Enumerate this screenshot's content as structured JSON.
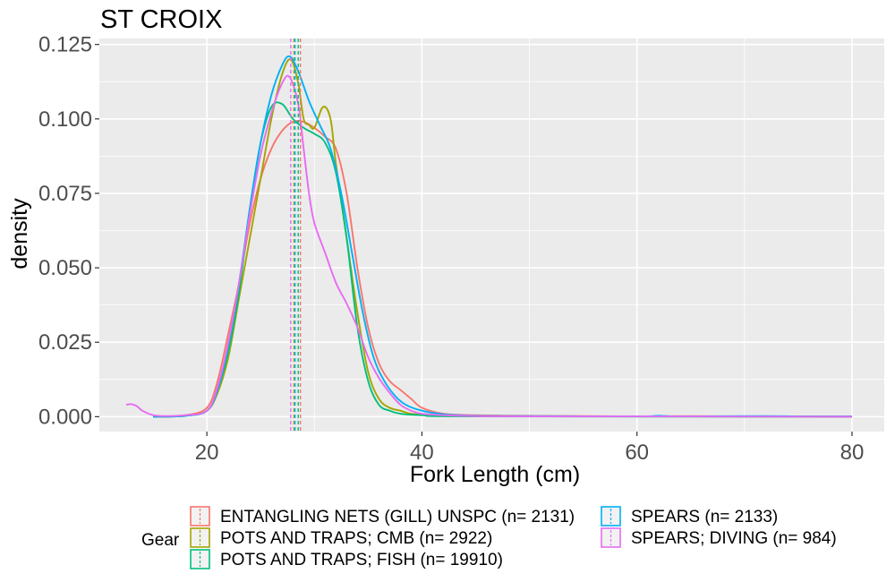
{
  "chart_data": {
    "type": "line",
    "title": "ST CROIX",
    "xlabel": "Fork Length (cm)",
    "ylabel": "density",
    "xlim": [
      10,
      83
    ],
    "ylim": [
      -0.005,
      0.127
    ],
    "x_ticks": [
      20,
      40,
      60,
      80
    ],
    "x_tick_labels": [
      "20",
      "40",
      "60",
      "80"
    ],
    "y_ticks": [
      0,
      0.025,
      0.05,
      0.075,
      0.1,
      0.125
    ],
    "y_tick_labels": [
      "0.000",
      "0.025",
      "0.050",
      "0.075",
      "0.100",
      "0.125"
    ],
    "grid": true,
    "legend_title": "Gear",
    "legend_position": "bottom",
    "series": [
      {
        "name": "ENTANGLING NETS (GILL) UNSPC (n= 2131)",
        "color": "#F8766D",
        "mean": 28.7,
        "points": [
          [
            15,
            0
          ],
          [
            18,
            0.0005
          ],
          [
            20,
            0.003
          ],
          [
            21,
            0.012
          ],
          [
            22,
            0.028
          ],
          [
            23,
            0.045
          ],
          [
            24,
            0.065
          ],
          [
            25,
            0.08
          ],
          [
            26,
            0.09
          ],
          [
            27,
            0.096
          ],
          [
            28,
            0.099
          ],
          [
            29,
            0.099
          ],
          [
            30,
            0.097
          ],
          [
            31,
            0.094
          ],
          [
            32,
            0.09
          ],
          [
            33,
            0.075
          ],
          [
            34,
            0.05
          ],
          [
            35,
            0.03
          ],
          [
            36,
            0.018
          ],
          [
            37,
            0.012
          ],
          [
            38,
            0.009
          ],
          [
            39,
            0.006
          ],
          [
            40,
            0.003
          ],
          [
            42,
            0.001
          ],
          [
            45,
            0.0005
          ],
          [
            50,
            0.0003
          ],
          [
            55,
            0.0002
          ],
          [
            60,
            0.0001
          ],
          [
            65,
            0.0002
          ],
          [
            70,
            0.0001
          ],
          [
            80,
            0.0001
          ]
        ]
      },
      {
        "name": "POTS AND TRAPS; CMB (n= 2922)",
        "color": "#A3A500",
        "mean": 28.1,
        "points": [
          [
            15,
            0
          ],
          [
            18,
            0.0003
          ],
          [
            20,
            0.002
          ],
          [
            21,
            0.008
          ],
          [
            22,
            0.02
          ],
          [
            23,
            0.04
          ],
          [
            24,
            0.06
          ],
          [
            25,
            0.08
          ],
          [
            26,
            0.1
          ],
          [
            27,
            0.115
          ],
          [
            27.8,
            0.12
          ],
          [
            28.5,
            0.112
          ],
          [
            29,
            0.1
          ],
          [
            29.5,
            0.098
          ],
          [
            30,
            0.097
          ],
          [
            30.8,
            0.104
          ],
          [
            31.5,
            0.1
          ],
          [
            32,
            0.085
          ],
          [
            33,
            0.06
          ],
          [
            34,
            0.035
          ],
          [
            35,
            0.015
          ],
          [
            36,
            0.006
          ],
          [
            37,
            0.003
          ],
          [
            38,
            0.002
          ],
          [
            39,
            0.001
          ],
          [
            41,
            0.0005
          ],
          [
            45,
            0.0002
          ],
          [
            50,
            0.0001
          ],
          [
            60,
            0.0001
          ],
          [
            80,
            0
          ]
        ]
      },
      {
        "name": "POTS AND TRAPS; FISH (n= 19910)",
        "color": "#00BF7D",
        "mean": 28.5,
        "points": [
          [
            15,
            0
          ],
          [
            18,
            0.0003
          ],
          [
            20,
            0.002
          ],
          [
            21,
            0.009
          ],
          [
            22,
            0.022
          ],
          [
            23,
            0.042
          ],
          [
            24,
            0.07
          ],
          [
            25,
            0.092
          ],
          [
            26,
            0.104
          ],
          [
            27,
            0.105
          ],
          [
            28,
            0.1
          ],
          [
            29,
            0.097
          ],
          [
            30,
            0.095
          ],
          [
            31,
            0.092
          ],
          [
            32,
            0.082
          ],
          [
            33,
            0.06
          ],
          [
            34,
            0.03
          ],
          [
            35,
            0.012
          ],
          [
            36,
            0.004
          ],
          [
            37,
            0.002
          ],
          [
            38,
            0.001
          ],
          [
            40,
            0.0005
          ],
          [
            45,
            0.0001
          ],
          [
            80,
            0
          ]
        ]
      },
      {
        "name": "SPEARS (n= 2133)",
        "color": "#00B0F6",
        "mean": 28.2,
        "points": [
          [
            15,
            0
          ],
          [
            18,
            0.0003
          ],
          [
            20,
            0.002
          ],
          [
            21,
            0.009
          ],
          [
            22,
            0.024
          ],
          [
            23,
            0.045
          ],
          [
            24,
            0.07
          ],
          [
            25,
            0.092
          ],
          [
            26,
            0.108
          ],
          [
            27,
            0.118
          ],
          [
            27.7,
            0.121
          ],
          [
            28.5,
            0.116
          ],
          [
            29.5,
            0.106
          ],
          [
            30.5,
            0.098
          ],
          [
            31.5,
            0.09
          ],
          [
            32.5,
            0.075
          ],
          [
            33.5,
            0.055
          ],
          [
            34.5,
            0.035
          ],
          [
            35.5,
            0.02
          ],
          [
            36.5,
            0.012
          ],
          [
            37.5,
            0.007
          ],
          [
            38.5,
            0.004
          ],
          [
            40,
            0.002
          ],
          [
            42,
            0.0008
          ],
          [
            45,
            0.0003
          ],
          [
            50,
            0.0002
          ],
          [
            60,
            0.0001
          ],
          [
            62,
            0.0003
          ],
          [
            64,
            0.0001
          ],
          [
            72,
            0.0002
          ],
          [
            75,
            0.0001
          ],
          [
            80,
            0.0001
          ]
        ]
      },
      {
        "name": "SPEARS; DIVING (n= 984)",
        "color": "#E76BF3",
        "mean": 27.8,
        "points": [
          [
            12.5,
            0.004
          ],
          [
            13,
            0.0042
          ],
          [
            13.5,
            0.0035
          ],
          [
            14,
            0.002
          ],
          [
            15,
            0.0005
          ],
          [
            16,
            0.0002
          ],
          [
            18,
            0.0005
          ],
          [
            20,
            0.002
          ],
          [
            21,
            0.01
          ],
          [
            22,
            0.025
          ],
          [
            23,
            0.045
          ],
          [
            24,
            0.068
          ],
          [
            25,
            0.088
          ],
          [
            26,
            0.102
          ],
          [
            27,
            0.112
          ],
          [
            27.7,
            0.114
          ],
          [
            28.5,
            0.105
          ],
          [
            29,
            0.09
          ],
          [
            29.5,
            0.075
          ],
          [
            30,
            0.065
          ],
          [
            31,
            0.055
          ],
          [
            32,
            0.045
          ],
          [
            33,
            0.038
          ],
          [
            34,
            0.03
          ],
          [
            35,
            0.02
          ],
          [
            36,
            0.013
          ],
          [
            37,
            0.008
          ],
          [
            38,
            0.004
          ],
          [
            39,
            0.002
          ],
          [
            40,
            0.001
          ],
          [
            42,
            0.0005
          ],
          [
            45,
            0.0002
          ],
          [
            50,
            0.0001
          ],
          [
            60,
            0.0001
          ],
          [
            80,
            0
          ]
        ]
      }
    ]
  }
}
